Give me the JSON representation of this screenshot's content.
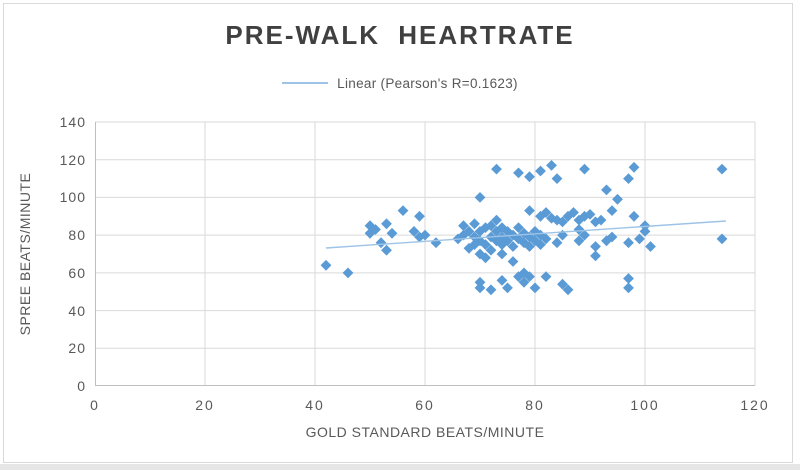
{
  "title": "PRE-WALK HEARTRATE",
  "legend": {
    "label": "Linear (Pearson's R=0.1623)"
  },
  "colors": {
    "marker": "#5B9BD5",
    "trendline": "#9DC3E6",
    "grid": "#D9D9D9",
    "axis": "#BFBFBF",
    "text": "#595959",
    "title_text": "#404040",
    "frame_border": "#D9D9D9"
  },
  "chart_data": {
    "type": "scatter",
    "title": "PRE-WALK HEARTRATE",
    "xlabel": "GOLD STANDARD BEATS/MINUTE",
    "ylabel": "SPREE BEATS/MINUTE",
    "xlim": [
      0,
      120
    ],
    "ylim": [
      0,
      140
    ],
    "xticks": [
      0,
      20,
      40,
      60,
      80,
      100,
      120
    ],
    "yticks": [
      0,
      20,
      40,
      60,
      80,
      100,
      120,
      140
    ],
    "grid": true,
    "legend_position": "top-center",
    "series_name": "Pre-walk heartrate",
    "points": [
      [
        42,
        64
      ],
      [
        46,
        60
      ],
      [
        50,
        85
      ],
      [
        50,
        81
      ],
      [
        51,
        83
      ],
      [
        53,
        86
      ],
      [
        54,
        81
      ],
      [
        52,
        76
      ],
      [
        53,
        72
      ],
      [
        56,
        93
      ],
      [
        58,
        82
      ],
      [
        59,
        79
      ],
      [
        59,
        90
      ],
      [
        60,
        80
      ],
      [
        62,
        76
      ],
      [
        67,
        85
      ],
      [
        69,
        86
      ],
      [
        72,
        85
      ],
      [
        73,
        88
      ],
      [
        74,
        84
      ],
      [
        70,
        100
      ],
      [
        66,
        78
      ],
      [
        67,
        80
      ],
      [
        68,
        82
      ],
      [
        68,
        73
      ],
      [
        69,
        75
      ],
      [
        69,
        79
      ],
      [
        70,
        70
      ],
      [
        70,
        77
      ],
      [
        70,
        82
      ],
      [
        71,
        68
      ],
      [
        71,
        75
      ],
      [
        71,
        84
      ],
      [
        72,
        79
      ],
      [
        72,
        72
      ],
      [
        73,
        77
      ],
      [
        73,
        82
      ],
      [
        74,
        75
      ],
      [
        74,
        79
      ],
      [
        75,
        82
      ],
      [
        75,
        77
      ],
      [
        76,
        74
      ],
      [
        76,
        80
      ],
      [
        77,
        84
      ],
      [
        77,
        78
      ],
      [
        78,
        76
      ],
      [
        78,
        81
      ],
      [
        79,
        79
      ],
      [
        79,
        74
      ],
      [
        80,
        77
      ],
      [
        80,
        82
      ],
      [
        81,
        80
      ],
      [
        81,
        75
      ],
      [
        82,
        78
      ],
      [
        76,
        66
      ],
      [
        74,
        70
      ],
      [
        70,
        55
      ],
      [
        70,
        52
      ],
      [
        72,
        51
      ],
      [
        74,
        56
      ],
      [
        75,
        52
      ],
      [
        77,
        58
      ],
      [
        78,
        55
      ],
      [
        79,
        58
      ],
      [
        80,
        52
      ],
      [
        82,
        58
      ],
      [
        78,
        60
      ],
      [
        85,
        54
      ],
      [
        86,
        51
      ],
      [
        97,
        57
      ],
      [
        97,
        52
      ],
      [
        82,
        92
      ],
      [
        83,
        89
      ],
      [
        84,
        88
      ],
      [
        85,
        87
      ],
      [
        86,
        90
      ],
      [
        87,
        92
      ],
      [
        88,
        88
      ],
      [
        89,
        90
      ],
      [
        90,
        91
      ],
      [
        91,
        87
      ],
      [
        92,
        88
      ],
      [
        84,
        76
      ],
      [
        85,
        80
      ],
      [
        88,
        77
      ],
      [
        88,
        83
      ],
      [
        89,
        80
      ],
      [
        91,
        74
      ],
      [
        91,
        69
      ],
      [
        93,
        77
      ],
      [
        94,
        79
      ],
      [
        97,
        76
      ],
      [
        99,
        78
      ],
      [
        100,
        82
      ],
      [
        101,
        74
      ],
      [
        79,
        93
      ],
      [
        81,
        90
      ],
      [
        93,
        104
      ],
      [
        95,
        99
      ],
      [
        94,
        93
      ],
      [
        98,
        90
      ],
      [
        100,
        85
      ],
      [
        73,
        115
      ],
      [
        77,
        113
      ],
      [
        79,
        111
      ],
      [
        81,
        114
      ],
      [
        83,
        117
      ],
      [
        84,
        110
      ],
      [
        89,
        115
      ],
      [
        97,
        110
      ],
      [
        98,
        116
      ],
      [
        114,
        115
      ],
      [
        114,
        78
      ]
    ],
    "trendline": {
      "type": "linear",
      "pearson_r": 0.1623,
      "label": "Linear (Pearson's R=0.1623)",
      "x1": 42,
      "y1": 73.2,
      "x2": 114.7,
      "y2": 87.5
    }
  }
}
